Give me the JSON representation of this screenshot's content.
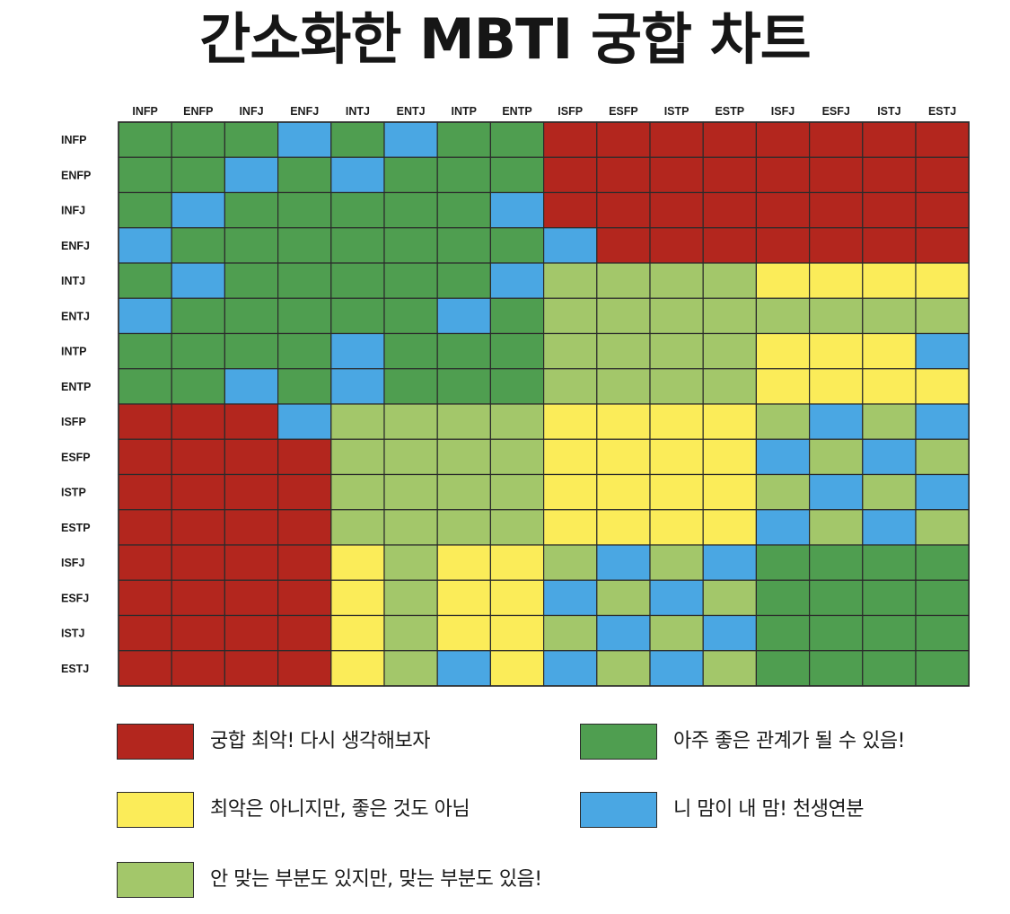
{
  "title": "간소화한 MBTI 궁합 차트",
  "chart_data": {
    "type": "heatmap",
    "title": "간소화한 MBTI 궁합 차트",
    "columns": [
      "INFP",
      "ENFP",
      "INFJ",
      "ENFJ",
      "INTJ",
      "ENTJ",
      "INTP",
      "ENTP",
      "ISFP",
      "ESFP",
      "ISTP",
      "ESTP",
      "ISFJ",
      "ESFJ",
      "ISTJ",
      "ESTJ"
    ],
    "rows": [
      "INFP",
      "ENFP",
      "INFJ",
      "ENFJ",
      "INTJ",
      "ENTJ",
      "INTP",
      "ENTP",
      "ISFP",
      "ESFP",
      "ISTP",
      "ESTP",
      "ISFJ",
      "ESFJ",
      "ISTJ",
      "ESTJ"
    ],
    "scale": {
      "1": "궁합 최악! 다시 생각해보자",
      "2": "최악은 아니지만, 좋은 것도 아님",
      "3": "안 맞는 부분도 있지만, 맞는 부분도 있음!",
      "4": "아주 좋은 관계가 될 수 있음!",
      "5": "니 맘이 내 맘! 천생연분"
    },
    "values": [
      [
        4,
        4,
        4,
        5,
        4,
        5,
        4,
        4,
        1,
        1,
        1,
        1,
        1,
        1,
        1,
        1
      ],
      [
        4,
        4,
        5,
        4,
        5,
        4,
        4,
        4,
        1,
        1,
        1,
        1,
        1,
        1,
        1,
        1
      ],
      [
        4,
        5,
        4,
        4,
        4,
        4,
        4,
        5,
        1,
        1,
        1,
        1,
        1,
        1,
        1,
        1
      ],
      [
        5,
        4,
        4,
        4,
        4,
        4,
        4,
        4,
        5,
        1,
        1,
        1,
        1,
        1,
        1,
        1
      ],
      [
        4,
        5,
        4,
        4,
        4,
        4,
        4,
        5,
        3,
        3,
        3,
        3,
        2,
        2,
        2,
        2
      ],
      [
        5,
        4,
        4,
        4,
        4,
        4,
        5,
        4,
        3,
        3,
        3,
        3,
        3,
        3,
        3,
        3
      ],
      [
        4,
        4,
        4,
        4,
        5,
        4,
        4,
        4,
        3,
        3,
        3,
        3,
        2,
        2,
        2,
        5
      ],
      [
        4,
        4,
        5,
        4,
        5,
        4,
        4,
        4,
        3,
        3,
        3,
        3,
        2,
        2,
        2,
        2
      ],
      [
        1,
        1,
        1,
        5,
        3,
        3,
        3,
        3,
        2,
        2,
        2,
        2,
        3,
        5,
        3,
        5
      ],
      [
        1,
        1,
        1,
        1,
        3,
        3,
        3,
        3,
        2,
        2,
        2,
        2,
        5,
        3,
        5,
        3
      ],
      [
        1,
        1,
        1,
        1,
        3,
        3,
        3,
        3,
        2,
        2,
        2,
        2,
        3,
        5,
        3,
        5
      ],
      [
        1,
        1,
        1,
        1,
        3,
        3,
        3,
        3,
        2,
        2,
        2,
        2,
        5,
        3,
        5,
        3
      ],
      [
        1,
        1,
        1,
        1,
        2,
        3,
        2,
        2,
        3,
        5,
        3,
        5,
        4,
        4,
        4,
        4
      ],
      [
        1,
        1,
        1,
        1,
        2,
        3,
        2,
        2,
        5,
        3,
        5,
        3,
        4,
        4,
        4,
        4
      ],
      [
        1,
        1,
        1,
        1,
        2,
        3,
        2,
        2,
        3,
        5,
        3,
        5,
        4,
        4,
        4,
        4
      ],
      [
        1,
        1,
        1,
        1,
        2,
        3,
        5,
        2,
        5,
        3,
        5,
        3,
        4,
        4,
        4,
        4
      ]
    ]
  },
  "colors": {
    "1": "#b3261e",
    "2": "#fbec59",
    "3": "#a3c76a",
    "4": "#4f9e50",
    "5": "#4aa7e3",
    "grid": "#2b2b2b",
    "axis_text": "#1c1c1c"
  },
  "legend": [
    {
      "level": 1,
      "label": "궁합 최악! 다시 생각해보자"
    },
    {
      "level": 4,
      "label": "아주 좋은 관계가 될 수 있음!"
    },
    {
      "level": 2,
      "label": "최악은 아니지만, 좋은 것도 아님"
    },
    {
      "level": 5,
      "label": "니 맘이 내 맘! 천생연분"
    },
    {
      "level": 3,
      "label": "안 맞는 부분도 있지만, 맞는 부분도 있음!"
    }
  ]
}
